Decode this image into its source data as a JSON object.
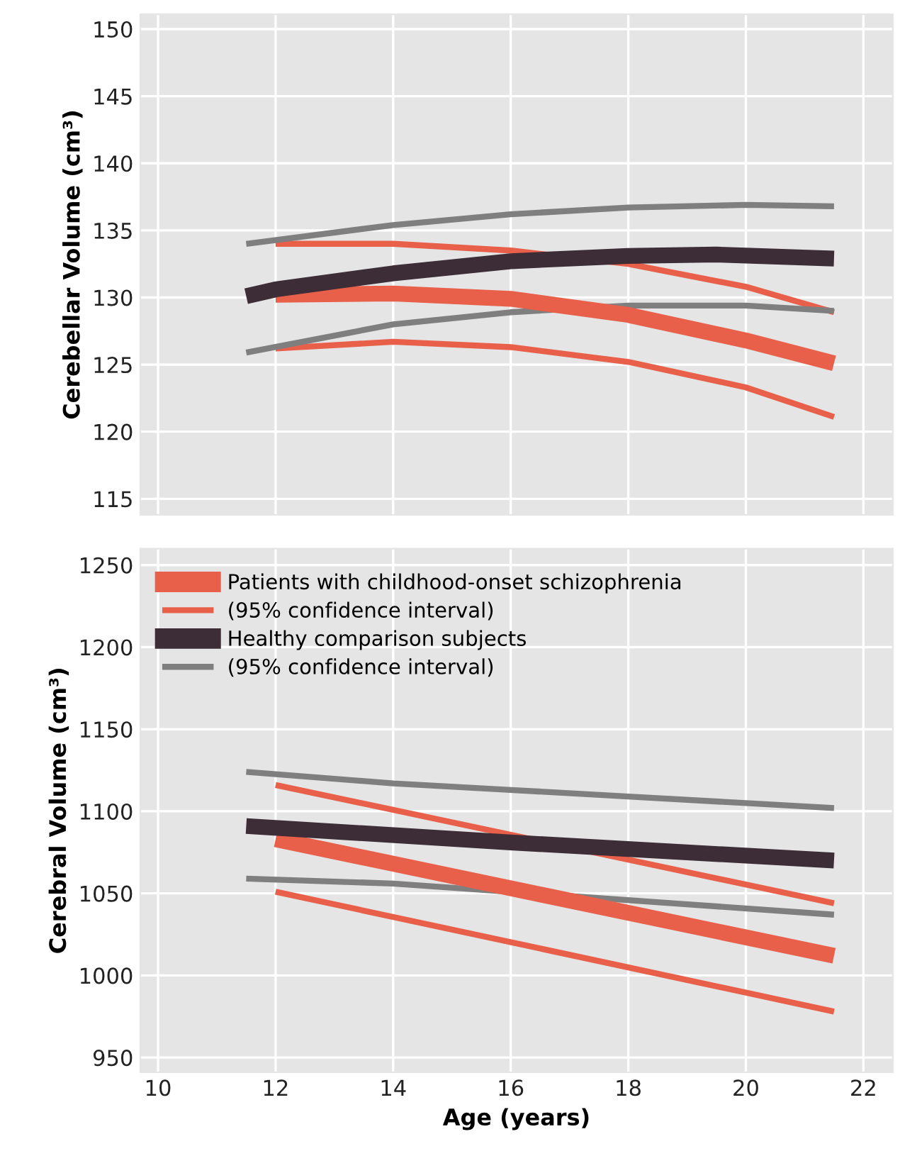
{
  "chart_data": [
    {
      "type": "line",
      "ylabel": "Cerebellar Volume (cm³)",
      "xlim": [
        9.7,
        22.5
      ],
      "xticks": [
        10,
        12,
        14,
        16,
        18,
        20,
        22
      ],
      "ylim": [
        113.8,
        151.1
      ],
      "yticks": [
        115,
        120,
        125,
        130,
        135,
        140,
        145,
        150
      ],
      "tick_labels": "y",
      "grid": true,
      "legend": false,
      "series": [
        {
          "color": "#e8604a",
          "x": [
            12,
            14,
            16,
            18,
            20,
            21.5
          ],
          "values": [
            130.2,
            130.3,
            129.9,
            128.7,
            126.8,
            125.1
          ]
        },
        {
          "color": "#e8604a",
          "x": [
            12,
            14,
            16,
            18,
            20,
            21.5
          ],
          "values": [
            134.0,
            134.0,
            133.5,
            132.5,
            130.8,
            128.9
          ]
        },
        {
          "color": "#e8604a",
          "x": [
            12,
            14,
            16,
            18,
            20,
            21.5
          ],
          "values": [
            126.2,
            126.7,
            126.3,
            125.2,
            123.3,
            121.1
          ]
        },
        {
          "color": "#3d2d36",
          "x": [
            11.5,
            12,
            14,
            16,
            18,
            19.5,
            21.5
          ],
          "values": [
            130.1,
            130.6,
            131.8,
            132.7,
            133.1,
            133.2,
            132.9
          ]
        },
        {
          "color": "#7f7f7f",
          "x": [
            11.5,
            14,
            16,
            18,
            20,
            21.5
          ],
          "values": [
            134.0,
            135.4,
            136.2,
            136.7,
            136.9,
            136.8
          ]
        },
        {
          "color": "#7f7f7f",
          "x": [
            11.5,
            14,
            16,
            18,
            20,
            21.5
          ],
          "values": [
            125.9,
            128.0,
            128.9,
            129.4,
            129.4,
            129.0
          ]
        }
      ]
    },
    {
      "type": "line",
      "xlabel": "Age (years)",
      "ylabel": "Cerebral Volume (cm³)",
      "xlim": [
        9.7,
        22.5
      ],
      "xticks": [
        10,
        12,
        14,
        16,
        18,
        20,
        22
      ],
      "ylim": [
        941,
        1260
      ],
      "yticks": [
        950,
        1000,
        1050,
        1100,
        1150,
        1200,
        1250
      ],
      "grid": true,
      "legend": "top left",
      "series": [
        {
          "name": "Patients with childhood-onset schizophrenia",
          "color": "#e8604a",
          "x": [
            12,
            21.5
          ],
          "values": [
            1083,
            1012
          ]
        },
        {
          "name": "(95% confidence interval)",
          "color": "#e8604a",
          "x": [
            12,
            21.5
          ],
          "values": [
            1116,
            1044
          ]
        },
        {
          "color": "#e8604a",
          "x": [
            12,
            21.5
          ],
          "values": [
            1051,
            978
          ]
        },
        {
          "name": "Healthy comparison subjects",
          "color": "#3d2d36",
          "x": [
            11.5,
            16,
            21.5
          ],
          "values": [
            1091,
            1081,
            1070
          ]
        },
        {
          "name": "(95% confidence interval)",
          "color": "#7f7f7f",
          "x": [
            11.5,
            14,
            16,
            18,
            20,
            21.5
          ],
          "values": [
            1124,
            1117,
            1113,
            1109,
            1105,
            1102
          ]
        },
        {
          "color": "#7f7f7f",
          "x": [
            11.5,
            14,
            21.5
          ],
          "values": [
            1059,
            1056,
            1037
          ]
        }
      ]
    }
  ]
}
